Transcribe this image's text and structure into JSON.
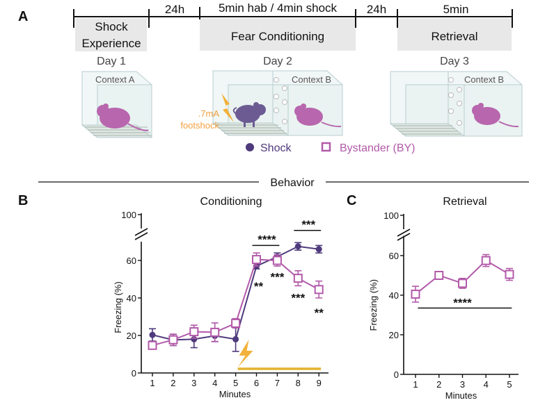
{
  "panel_labels": {
    "a": "A",
    "b": "B",
    "c": "C"
  },
  "timeline": {
    "gap1": "24h",
    "conditioning_duration": "5min hab / 4min shock",
    "gap2": "24h",
    "retrieval_duration": "5min",
    "phase1_line1": "Shock",
    "phase1_line2": "Experience",
    "phase2": "Fear Conditioning",
    "phase3": "Retrieval",
    "day1": "Day 1",
    "day2": "Day 2",
    "day3": "Day 3",
    "context_a": "Context A",
    "context_b1": "Context B",
    "context_b2": "Context B",
    "shock_line1": ".7mA",
    "shock_line2": "footshock"
  },
  "legend": {
    "shock": "Shock",
    "bystander": "Bystander (BY)"
  },
  "section_title": "Behavior",
  "colors": {
    "shock": "#4e3a7c",
    "bystander": "#b25aa9",
    "footshock": "#f0a040",
    "shock_bar": "#e3b22f",
    "phase_box": "#e8e8e8"
  },
  "chart_data": [
    {
      "type": "line",
      "title": "Conditioning",
      "xlabel": "Minutes",
      "ylabel": "Freezing (%)",
      "x": [
        1,
        2,
        3,
        4,
        5,
        6,
        7,
        8,
        9
      ],
      "xticks": [
        "1",
        "2",
        "3",
        "4",
        "5",
        "6",
        "7",
        "8",
        "9"
      ],
      "yticks": [
        "0",
        "20",
        "40",
        "60",
        "100"
      ],
      "ytick_values": [
        0,
        20,
        40,
        60,
        100
      ],
      "ylim": [
        0,
        100
      ],
      "axis_break": [
        70,
        95
      ],
      "series": [
        {
          "name": "Shock",
          "marker": "circle",
          "values": [
            20.3,
            17.6,
            18.0,
            19.8,
            18.0,
            57.0,
            62.0,
            67.5,
            66.0
          ],
          "errors": [
            3.3,
            3.0,
            4.5,
            3.0,
            6.5,
            1.5,
            2.0,
            2.0,
            2.0
          ]
        },
        {
          "name": "Bystander (BY)",
          "marker": "open-square",
          "values": [
            14.7,
            17.7,
            22.0,
            21.7,
            26.5,
            60.5,
            60.0,
            50.5,
            44.5
          ],
          "errors": [
            2.0,
            3.0,
            3.5,
            5.0,
            2.5,
            3.5,
            3.0,
            4.0,
            4.5
          ]
        }
      ],
      "shock_period": [
        5.1,
        9.1
      ],
      "annotations": [
        {
          "text": "****",
          "x": 6.5,
          "y": 72,
          "bar": [
            5.8,
            7.1
          ]
        },
        {
          "text": "***",
          "x": 8.5,
          "y": 80,
          "bar": [
            7.8,
            9.1
          ]
        },
        {
          "text": "**",
          "x": 6.1,
          "y": 47,
          "bar": null
        },
        {
          "text": "***",
          "x": 7.0,
          "y": 52,
          "bar": null
        },
        {
          "text": "***",
          "x": 8.0,
          "y": 41,
          "bar": null
        },
        {
          "text": "**",
          "x": 9.0,
          "y": 33,
          "bar": null
        }
      ]
    },
    {
      "type": "line",
      "title": "Retrieval",
      "xlabel": "Minutes",
      "ylabel": "Freezing (%)",
      "x": [
        1,
        2,
        3,
        4,
        5
      ],
      "xticks": [
        "1",
        "2",
        "3",
        "4",
        "5"
      ],
      "yticks": [
        "0",
        "20",
        "40",
        "60",
        "100"
      ],
      "ytick_values": [
        0,
        20,
        40,
        60,
        100
      ],
      "ylim": [
        0,
        100
      ],
      "axis_break": [
        70,
        95
      ],
      "series": [
        {
          "name": "Bystander (BY)",
          "marker": "open-square",
          "values": [
            40.5,
            50.0,
            46.0,
            57.5,
            50.5
          ],
          "errors": [
            4.0,
            1.5,
            2.5,
            3.0,
            3.0
          ]
        }
      ],
      "annotations": [
        {
          "text": "****",
          "x": 3.0,
          "y": 37,
          "bar": [
            1.1,
            5.1
          ],
          "bar_y": 33.5
        }
      ]
    }
  ]
}
